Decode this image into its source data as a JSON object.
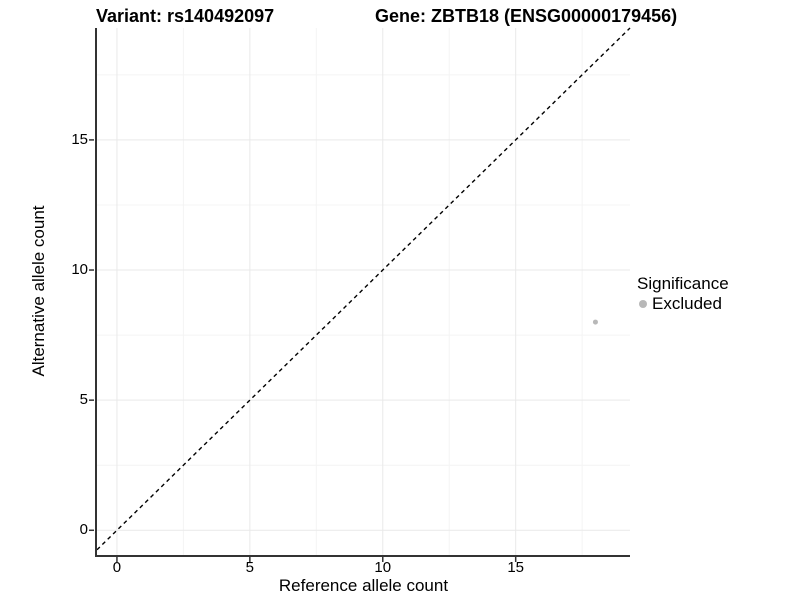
{
  "figure": {
    "variant_title": "Variant: rs140492097",
    "gene_title": "Gene: ZBTB18 (ENSG00000179456)"
  },
  "chart_data": {
    "type": "scatter",
    "title_left": "Variant: rs140492097",
    "title_right": "Gene: ZBTB18 (ENSG00000179456)",
    "xlabel": "Reference allele count",
    "ylabel": "Alternative allele count",
    "xlim": [
      -0.75,
      19.3
    ],
    "ylim": [
      -0.95,
      19.3
    ],
    "x_ticks": [
      0,
      5,
      10,
      15
    ],
    "y_ticks": [
      0,
      5,
      10,
      15
    ],
    "x_minor_ticks": [
      2.5,
      7.5,
      12.5,
      17.5
    ],
    "y_minor_ticks": [
      2.5,
      7.5,
      12.5,
      17.5
    ],
    "grid": true,
    "point_radius": 2.5,
    "reference_line": {
      "type": "identity",
      "slope": 1,
      "intercept": 0,
      "style": "dashed",
      "color": "#000000"
    },
    "series": [
      {
        "name": "Excluded",
        "color": "#b8b8b8",
        "points": [
          {
            "x": 18,
            "y": 8
          }
        ]
      }
    ],
    "legend": {
      "title": "Significance",
      "position": "right",
      "items": [
        {
          "label": "Excluded",
          "color": "#b8b8b8"
        }
      ]
    }
  },
  "colors": {
    "background": "#ffffff",
    "axis": "#333333",
    "grid_major": "#e9e9e9",
    "grid_minor": "#f4f4f4",
    "text": "#000000",
    "point": "#b8b8b8"
  }
}
